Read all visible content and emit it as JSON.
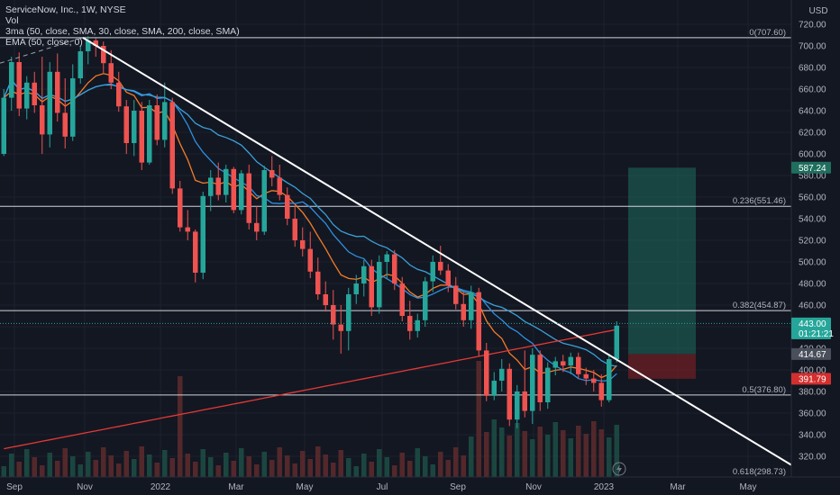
{
  "header": {
    "title": "ServiceNow, Inc., 1W, NYSE",
    "vol_label": "Vol",
    "ma_label": "3ma (50, close, SMA, 30, close, SMA, 200, close, SMA)",
    "ema_label": "EMA (50, close, 0)",
    "currency": "USD"
  },
  "chart_data": {
    "type": "candlestick",
    "symbol": "NOW",
    "interval": "1W",
    "ylim": [
      310,
      740
    ],
    "y_ticks": [
      320,
      340,
      360,
      380,
      400,
      420,
      440,
      460,
      480,
      500,
      520,
      540,
      560,
      580,
      600,
      620,
      640,
      660,
      680,
      700,
      720
    ],
    "x_ticks": [
      "Sep",
      "Nov",
      "2022",
      "Mar",
      "May",
      "Jul",
      "Sep",
      "Nov",
      "2023",
      "Mar",
      "May"
    ],
    "fib_levels": [
      {
        "label": "0(707.60)",
        "value": 707.6
      },
      {
        "label": "0.236(551.46)",
        "value": 551.46
      },
      {
        "label": "0.382(454.87)",
        "value": 454.87
      },
      {
        "label": "0.5(376.80)",
        "value": 376.8
      },
      {
        "label": "0.618(298.73)",
        "value": 298.73
      }
    ],
    "price_tags": [
      {
        "label": "587.24",
        "value": 587.24,
        "color": "#1f6e5e"
      },
      {
        "label": "443.00",
        "value": 443.0,
        "color": "#26a69a"
      },
      {
        "label": "01:21:21",
        "value": 433.0,
        "color": "#26a69a"
      },
      {
        "label": "414.67",
        "value": 414.67,
        "color": "#4a4f5c"
      },
      {
        "label": "391.79",
        "value": 391.79,
        "color": "#d32f2f"
      }
    ],
    "position": {
      "target": 587.24,
      "entry": 414.67,
      "stop": 391.79
    },
    "trendline": {
      "from_value": 707.6,
      "to_value": 312
    },
    "candles": [
      {
        "o": 600,
        "h": 660,
        "l": 598,
        "c": 652
      },
      {
        "o": 652,
        "h": 690,
        "l": 640,
        "c": 685
      },
      {
        "o": 685,
        "h": 694,
        "l": 635,
        "c": 642
      },
      {
        "o": 642,
        "h": 672,
        "l": 632,
        "c": 666
      },
      {
        "o": 666,
        "h": 676,
        "l": 638,
        "c": 645
      },
      {
        "o": 645,
        "h": 690,
        "l": 600,
        "c": 618
      },
      {
        "o": 618,
        "h": 685,
        "l": 606,
        "c": 676
      },
      {
        "o": 676,
        "h": 693,
        "l": 630,
        "c": 638
      },
      {
        "o": 638,
        "h": 670,
        "l": 605,
        "c": 616
      },
      {
        "o": 616,
        "h": 683,
        "l": 612,
        "c": 670
      },
      {
        "o": 670,
        "h": 700,
        "l": 665,
        "c": 695
      },
      {
        "o": 695,
        "h": 709,
        "l": 683,
        "c": 705
      },
      {
        "o": 705,
        "h": 707,
        "l": 690,
        "c": 700
      },
      {
        "o": 700,
        "h": 704,
        "l": 675,
        "c": 684
      },
      {
        "o": 684,
        "h": 696,
        "l": 660,
        "c": 666
      },
      {
        "o": 666,
        "h": 676,
        "l": 639,
        "c": 644
      },
      {
        "o": 644,
        "h": 650,
        "l": 600,
        "c": 610
      },
      {
        "o": 610,
        "h": 650,
        "l": 598,
        "c": 640
      },
      {
        "o": 640,
        "h": 648,
        "l": 585,
        "c": 592
      },
      {
        "o": 592,
        "h": 650,
        "l": 590,
        "c": 645
      },
      {
        "o": 645,
        "h": 655,
        "l": 608,
        "c": 613
      },
      {
        "o": 613,
        "h": 666,
        "l": 606,
        "c": 648
      },
      {
        "o": 648,
        "h": 652,
        "l": 563,
        "c": 568
      },
      {
        "o": 568,
        "h": 575,
        "l": 528,
        "c": 532
      },
      {
        "o": 532,
        "h": 548,
        "l": 520,
        "c": 528
      },
      {
        "o": 528,
        "h": 530,
        "l": 481,
        "c": 490
      },
      {
        "o": 490,
        "h": 565,
        "l": 484,
        "c": 561
      },
      {
        "o": 561,
        "h": 585,
        "l": 547,
        "c": 578
      },
      {
        "o": 578,
        "h": 592,
        "l": 557,
        "c": 562
      },
      {
        "o": 562,
        "h": 590,
        "l": 555,
        "c": 586
      },
      {
        "o": 586,
        "h": 588,
        "l": 545,
        "c": 548
      },
      {
        "o": 548,
        "h": 585,
        "l": 544,
        "c": 582
      },
      {
        "o": 582,
        "h": 590,
        "l": 530,
        "c": 536
      },
      {
        "o": 536,
        "h": 552,
        "l": 520,
        "c": 528
      },
      {
        "o": 528,
        "h": 589,
        "l": 525,
        "c": 585
      },
      {
        "o": 585,
        "h": 598,
        "l": 570,
        "c": 578
      },
      {
        "o": 578,
        "h": 590,
        "l": 557,
        "c": 562
      },
      {
        "o": 562,
        "h": 569,
        "l": 534,
        "c": 540
      },
      {
        "o": 540,
        "h": 552,
        "l": 514,
        "c": 520
      },
      {
        "o": 520,
        "h": 532,
        "l": 505,
        "c": 512
      },
      {
        "o": 512,
        "h": 528,
        "l": 485,
        "c": 491
      },
      {
        "o": 491,
        "h": 504,
        "l": 465,
        "c": 470
      },
      {
        "o": 470,
        "h": 482,
        "l": 454,
        "c": 460
      },
      {
        "o": 460,
        "h": 474,
        "l": 428,
        "c": 442
      },
      {
        "o": 442,
        "h": 460,
        "l": 415,
        "c": 436
      },
      {
        "o": 436,
        "h": 476,
        "l": 418,
        "c": 470
      },
      {
        "o": 470,
        "h": 488,
        "l": 461,
        "c": 480
      },
      {
        "o": 480,
        "h": 502,
        "l": 468,
        "c": 496
      },
      {
        "o": 496,
        "h": 502,
        "l": 450,
        "c": 458
      },
      {
        "o": 458,
        "h": 506,
        "l": 452,
        "c": 500
      },
      {
        "o": 500,
        "h": 510,
        "l": 484,
        "c": 507
      },
      {
        "o": 507,
        "h": 511,
        "l": 474,
        "c": 480
      },
      {
        "o": 480,
        "h": 486,
        "l": 445,
        "c": 450
      },
      {
        "o": 450,
        "h": 464,
        "l": 428,
        "c": 436
      },
      {
        "o": 436,
        "h": 452,
        "l": 430,
        "c": 446
      },
      {
        "o": 446,
        "h": 486,
        "l": 440,
        "c": 482
      },
      {
        "o": 482,
        "h": 506,
        "l": 472,
        "c": 500
      },
      {
        "o": 500,
        "h": 515,
        "l": 488,
        "c": 492
      },
      {
        "o": 492,
        "h": 498,
        "l": 472,
        "c": 478
      },
      {
        "o": 478,
        "h": 486,
        "l": 456,
        "c": 461
      },
      {
        "o": 461,
        "h": 472,
        "l": 440,
        "c": 446
      },
      {
        "o": 446,
        "h": 478,
        "l": 438,
        "c": 472
      },
      {
        "o": 472,
        "h": 476,
        "l": 413,
        "c": 418
      },
      {
        "o": 418,
        "h": 425,
        "l": 371,
        "c": 376
      },
      {
        "o": 376,
        "h": 398,
        "l": 372,
        "c": 390
      },
      {
        "o": 390,
        "h": 410,
        "l": 380,
        "c": 401
      },
      {
        "o": 401,
        "h": 406,
        "l": 348,
        "c": 354
      },
      {
        "o": 354,
        "h": 386,
        "l": 346,
        "c": 380
      },
      {
        "o": 380,
        "h": 418,
        "l": 356,
        "c": 362
      },
      {
        "o": 362,
        "h": 420,
        "l": 350,
        "c": 414
      },
      {
        "o": 414,
        "h": 418,
        "l": 362,
        "c": 370
      },
      {
        "o": 370,
        "h": 407,
        "l": 364,
        "c": 402
      },
      {
        "o": 402,
        "h": 412,
        "l": 395,
        "c": 408
      },
      {
        "o": 408,
        "h": 414,
        "l": 398,
        "c": 404
      },
      {
        "o": 404,
        "h": 416,
        "l": 396,
        "c": 412
      },
      {
        "o": 412,
        "h": 416,
        "l": 392,
        "c": 396
      },
      {
        "o": 396,
        "h": 402,
        "l": 386,
        "c": 392
      },
      {
        "o": 392,
        "h": 400,
        "l": 380,
        "c": 388
      },
      {
        "o": 388,
        "h": 396,
        "l": 366,
        "c": 372
      },
      {
        "o": 372,
        "h": 415,
        "l": 370,
        "c": 410
      },
      {
        "o": 410,
        "h": 445,
        "l": 407,
        "c": 441
      }
    ]
  }
}
